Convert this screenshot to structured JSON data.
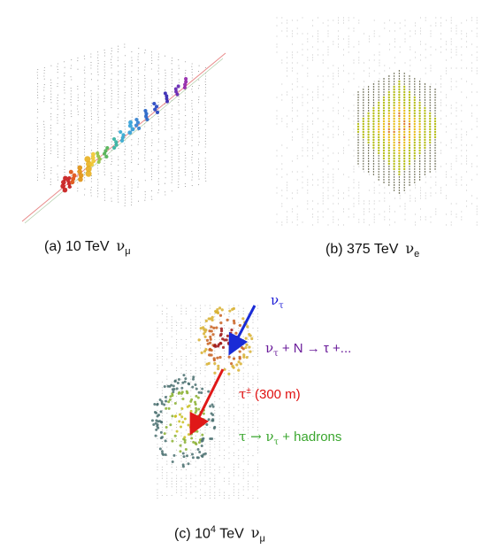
{
  "panels": [
    {
      "id": "a",
      "caption_prefix": "(a)  10 TeV",
      "neutrino_symbol": "ν",
      "neutrino_subscript": "μ"
    },
    {
      "id": "b",
      "caption_prefix": "(b)  375 TeV",
      "neutrino_symbol": "ν",
      "neutrino_subscript": "e"
    },
    {
      "id": "c",
      "caption_prefix": "(c)  10",
      "caption_exponent": "4",
      "caption_suffix": " TeV",
      "neutrino_symbol": "ν",
      "neutrino_subscript": "μ"
    }
  ],
  "annotations": {
    "nu_tau_label": {
      "symbol": "ν",
      "subscript": "τ",
      "color": "#1a1ad6"
    },
    "interaction": {
      "part1": "ν",
      "sub1": "τ",
      "part2": " + N → τ +...",
      "color": "#6a1b9a"
    },
    "tau_track": {
      "symbol": "τ",
      "superscript": "±",
      "text": " (300 m)",
      "color": "#e01010"
    },
    "decay": {
      "part1": "τ → ν",
      "sub1": "τ",
      "part2": " + hadrons",
      "color": "#3aa62e"
    }
  },
  "colors": {
    "dom_grey": "#9a9a9a",
    "track_line": "#e88a8a",
    "blue_arrow": "#1a2bd6",
    "red_arrow": "#e01818"
  }
}
